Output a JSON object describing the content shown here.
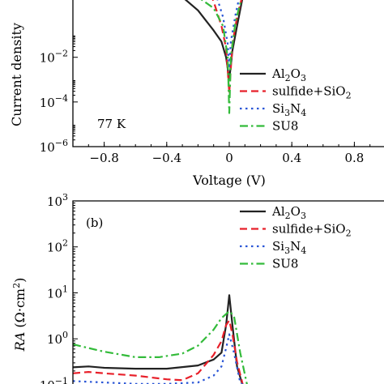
{
  "chart_data": [
    {
      "id": "a",
      "type": "line",
      "ylabel": "Current density",
      "xlabel": "Voltage (V)",
      "annotation": "77 K",
      "yscale": "log",
      "xlim": [
        -1.0,
        1.0
      ],
      "ylim": [
        -6,
        1
      ],
      "xticks": [
        -0.8,
        -0.4,
        0,
        0.4,
        0.8
      ],
      "xtick_labels": [
        "−0.8",
        "−0.4",
        "0",
        "0.4",
        "0.8"
      ],
      "yticks": [
        -6,
        -4,
        -2
      ],
      "ytick_labels": [
        {
          "base": "10",
          "exp": "−6"
        },
        {
          "base": "10",
          "exp": "−4"
        },
        {
          "base": "10",
          "exp": "−2"
        }
      ],
      "legend": {
        "position": "bottom-right",
        "entries": [
          {
            "base": "Al",
            "sub": "2",
            "base2": "O",
            "sub2": "3",
            "tail": ""
          },
          {
            "base": "sulfide+SiO",
            "sub": "2",
            "base2": "",
            "sub2": "",
            "tail": ""
          },
          {
            "base": "Si",
            "sub": "3",
            "base2": "N",
            "sub2": "4",
            "tail": ""
          },
          {
            "base": "SU8",
            "sub": "",
            "base2": "",
            "sub2": "",
            "tail": ""
          }
        ]
      },
      "series": [
        {
          "name": "Al₂O₃",
          "color": "#222222",
          "dash": "solid",
          "x": [
            -0.4,
            -0.3,
            -0.2,
            -0.1,
            -0.05,
            -0.02,
            0.0,
            0.02,
            0.05,
            0.1
          ],
          "y": [
            1.3,
            0.7,
            0.1,
            -0.8,
            -1.3,
            -2.0,
            -3.0,
            -1.7,
            -0.6,
            1.2
          ]
        },
        {
          "name": "sulfide+SiO₂",
          "color": "#e8202a",
          "dash": "dashed",
          "x": [
            -0.15,
            -0.1,
            -0.05,
            -0.02,
            0.0,
            0.02,
            0.05,
            0.1
          ],
          "y": [
            1.3,
            0.5,
            -0.6,
            -1.6,
            -3.6,
            -1.4,
            -0.2,
            1.2
          ]
        },
        {
          "name": "Si₃N₄",
          "color": "#2a56d6",
          "dash": "dotted",
          "x": [
            -0.13,
            -0.08,
            -0.04,
            -0.01,
            0.0,
            0.01,
            0.04,
            0.08
          ],
          "y": [
            1.3,
            0.7,
            -0.2,
            -1.4,
            -2.5,
            -1.3,
            -0.1,
            1.2
          ]
        },
        {
          "name": "SU8",
          "color": "#33bb3a",
          "dash": "dashdot",
          "x": [
            -0.35,
            -0.2,
            -0.1,
            -0.04,
            -0.01,
            0.0,
            0.01,
            0.04,
            0.1
          ],
          "y": [
            0.95,
            0.7,
            0.2,
            -0.6,
            -2.0,
            -4.5,
            -2.0,
            -0.4,
            1.2
          ]
        }
      ]
    },
    {
      "id": "b",
      "type": "line",
      "ylabel": "RA (Ω·cm²)",
      "annotation": "(b)",
      "yscale": "log",
      "xlim": [
        -1.0,
        1.0
      ],
      "ylim": [
        -1.3,
        3
      ],
      "yticks": [
        -1,
        0,
        1,
        2,
        3
      ],
      "ytick_labels": [
        {
          "base": "10",
          "exp": "−1"
        },
        {
          "base": "10",
          "exp": "0"
        },
        {
          "base": "10",
          "exp": "1"
        },
        {
          "base": "10",
          "exp": "2"
        },
        {
          "base": "10",
          "exp": "3"
        }
      ],
      "legend": {
        "position": "top-right",
        "entries": [
          {
            "base": "Al",
            "sub": "2",
            "base2": "O",
            "sub2": "3",
            "tail": ""
          },
          {
            "base": "sulfide+SiO",
            "sub": "2",
            "base2": "",
            "sub2": "",
            "tail": ""
          },
          {
            "base": "Si",
            "sub": "3",
            "base2": "N",
            "sub2": "4",
            "tail": ""
          },
          {
            "base": "SU8",
            "sub": "",
            "base2": "",
            "sub2": "",
            "tail": ""
          }
        ]
      },
      "series": [
        {
          "name": "Al₂O₃",
          "color": "#222222",
          "dash": "solid",
          "x": [
            -1.0,
            -0.9,
            -0.8,
            -0.6,
            -0.4,
            -0.2,
            -0.1,
            -0.05,
            -0.02,
            0.0,
            0.02,
            0.05,
            0.1,
            0.2,
            0.4,
            0.6,
            0.8,
            1.0
          ],
          "y": [
            -0.62,
            -0.6,
            -0.63,
            -0.65,
            -0.65,
            -0.58,
            -0.45,
            -0.3,
            0.3,
            0.95,
            0.3,
            -0.6,
            -1.18,
            -1.23,
            -1.22,
            -1.22,
            -1.26,
            -1.3
          ]
        },
        {
          "name": "sulfide+SiO₂",
          "color": "#e8202a",
          "dash": "dashed",
          "x": [
            -1.0,
            -0.9,
            -0.8,
            -0.6,
            -0.4,
            -0.3,
            -0.2,
            -0.1,
            -0.05,
            -0.02,
            0.0,
            0.02,
            0.05,
            0.1,
            0.2,
            0.4,
            0.6,
            0.8,
            1.0
          ],
          "y": [
            -0.75,
            -0.72,
            -0.75,
            -0.8,
            -0.88,
            -0.9,
            -0.75,
            -0.35,
            -0.05,
            0.3,
            0.4,
            0.1,
            -0.5,
            -1.18,
            -1.22,
            -1.2,
            -1.2,
            -1.24,
            -1.3
          ]
        },
        {
          "name": "Si₃N₄",
          "color": "#2a56d6",
          "dash": "dotted",
          "x": [
            -1.0,
            -0.8,
            -0.6,
            -0.4,
            -0.2,
            -0.1,
            -0.05,
            -0.02,
            0.0,
            0.03,
            0.07,
            0.15,
            0.3,
            0.5,
            0.7,
            0.9,
            1.0
          ],
          "y": [
            -0.92,
            -0.95,
            -0.98,
            -0.98,
            -0.95,
            -0.8,
            -0.6,
            -0.2,
            0.1,
            -0.3,
            -0.95,
            -1.2,
            -1.22,
            -1.2,
            -1.2,
            -1.25,
            -1.3
          ]
        },
        {
          "name": "SU8",
          "color": "#33bb3a",
          "dash": "dashdot",
          "x": [
            -1.0,
            -0.9,
            -0.8,
            -0.6,
            -0.45,
            -0.3,
            -0.2,
            -0.1,
            -0.05,
            0.0,
            0.03,
            0.07,
            0.12,
            0.2
          ],
          "y": [
            -0.12,
            -0.2,
            -0.28,
            -0.4,
            -0.4,
            -0.32,
            -0.15,
            0.2,
            0.45,
            0.6,
            0.5,
            -0.3,
            -1.1,
            -1.2
          ]
        }
      ]
    }
  ]
}
